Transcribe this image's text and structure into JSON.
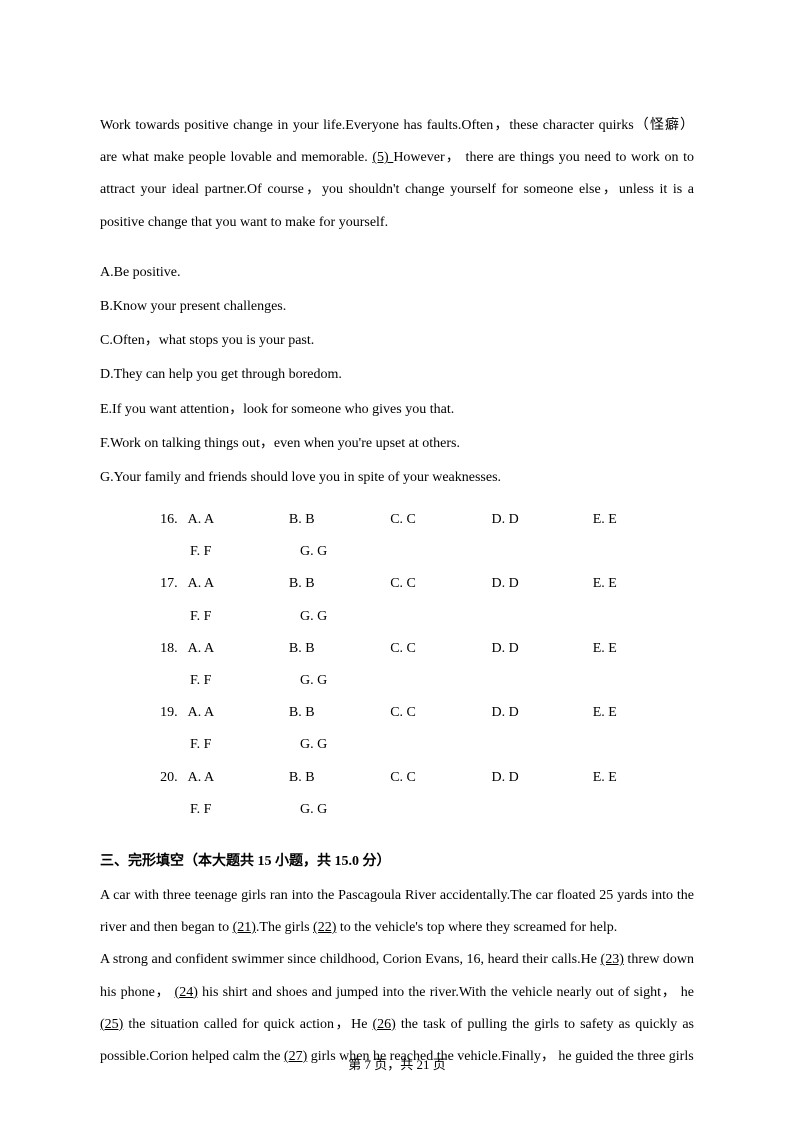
{
  "para1": {
    "t1": "Work towards positive change in your life.Everyone has faults.Often，these character quirks（怪癖） are what make people lovable and memorable. ",
    "blank": "(5) ",
    "t2": "However， there are things you need to work on to attract your ideal partner.Of course，you shouldn't change yourself for someone else，unless it is a positive change that you want to make for yourself."
  },
  "options": {
    "A": "A.Be positive.",
    "B": "B.Know your present challenges.",
    "C": "C.Often，what stops you is your past.",
    "D": "D.They can help you get through boredom.",
    "E": "E.If you want attention，look for someone who gives you that.",
    "F": "F.Work on talking things out，even when you're upset at others.",
    "G": "G.Your family and friends should love you in spite of your weaknesses."
  },
  "answers": {
    "row1": {
      "q": "16.",
      "a": "A. A",
      "b": "B. B",
      "c": "C. C",
      "d": "D. D",
      "e": "E. E"
    },
    "row1b": {
      "f": "F. F",
      "g": "G. G"
    },
    "row2": {
      "q": "17.",
      "a": "A. A",
      "b": "B. B",
      "c": "C. C",
      "d": "D. D",
      "e": "E. E"
    },
    "row2b": {
      "f": "F. F",
      "g": "G. G"
    },
    "row3": {
      "q": "18.",
      "a": "A. A",
      "b": "B. B",
      "c": "C. C",
      "d": "D. D",
      "e": "E. E"
    },
    "row3b": {
      "f": "F. F",
      "g": "G. G"
    },
    "row4": {
      "q": "19.",
      "a": "A. A",
      "b": "B. B",
      "c": "C. C",
      "d": "D. D",
      "e": "E. E"
    },
    "row4b": {
      "f": "F. F",
      "g": "G. G"
    },
    "row5": {
      "q": "20.",
      "a": "A. A",
      "b": "B. B",
      "c": "C. C",
      "d": "D. D",
      "e": "E. E"
    },
    "row5b": {
      "f": "F. F",
      "g": "G. G"
    }
  },
  "section3_title": "三、完形填空（本大题共 15 小题，共 15.0 分）",
  "cloze": {
    "s1": "A car with three teenage girls ran into the Pascagoula River accidentally.The car floated 25 yards into the river and then began to ",
    "b21": "(21)",
    "s2": ".The girls ",
    "b22": "(22)",
    "s3": " to the vehicle's top where they screamed for help.",
    "s4": "A strong and confident swimmer since childhood, Corion Evans, 16, heard their calls.He ",
    "b23": "(23)",
    "s5": " threw down his phone， ",
    "b24": "(24)",
    "s6": " his shirt and shoes and jumped into the river.With the vehicle nearly out of sight， he ",
    "b25": "(25)",
    "s7": " the situation called for quick action，He ",
    "b26": "(26)",
    "s8": " the task of pulling the girls to safety as quickly as possible.Corion helped calm the ",
    "b27": "(27)",
    "s9": " girls when he reached the vehicle.Finally， he guided the three girls"
  },
  "footer": "第 7 页，共 21 页"
}
